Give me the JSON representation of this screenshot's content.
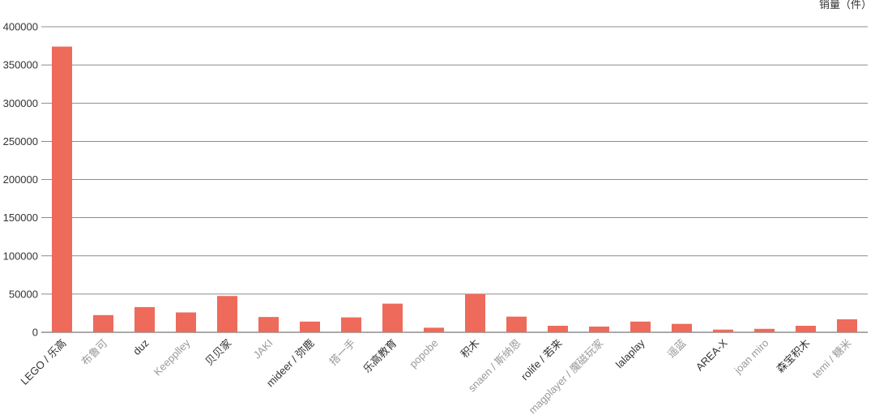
{
  "chart_data": {
    "type": "bar",
    "title": "",
    "xlabel": "",
    "ylabel": "销量（件）",
    "ylim": [
      0,
      400000
    ],
    "yticks": [
      0,
      50000,
      100000,
      150000,
      200000,
      250000,
      300000,
      350000,
      400000
    ],
    "grid": true,
    "bar_color": "#EE6A5B",
    "categories": [
      "LEGO / 乐高",
      "布鲁可",
      "duz",
      "Keepplley",
      "贝贝家",
      "JAKI",
      "mideer / 弥鹿",
      "搭一手",
      "乐高教育",
      "popobe",
      "积木",
      "snaen / 斯纳恩",
      "rolife / 若来",
      "magplayer / 魔磁玩家",
      "lalaplay",
      "遥蓝",
      "AREA-X",
      "joan miro",
      "森宝积木",
      "temi / 糖米"
    ],
    "category_colors": [
      "#333333",
      "#999999",
      "#333333",
      "#999999",
      "#333333",
      "#999999",
      "#333333",
      "#999999",
      "#333333",
      "#999999",
      "#333333",
      "#999999",
      "#333333",
      "#999999",
      "#333333",
      "#999999",
      "#333333",
      "#999999",
      "#333333",
      "#999999"
    ],
    "values": [
      374000,
      22500,
      33000,
      26000,
      47500,
      20000,
      14000,
      19500,
      37500,
      6000,
      50000,
      20500,
      8500,
      7500,
      14000,
      11000,
      3500,
      4500,
      8500,
      17000
    ]
  }
}
